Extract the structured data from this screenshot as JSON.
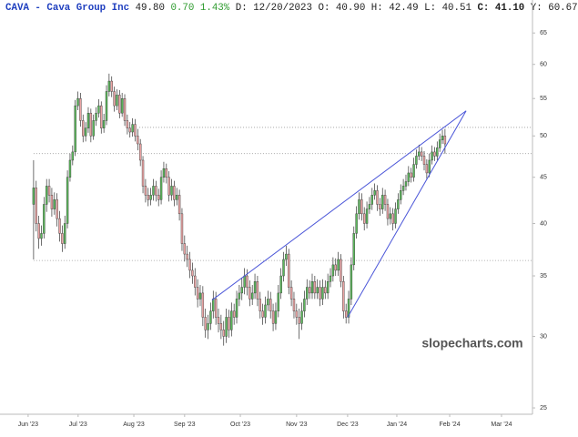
{
  "chart_data": {
    "type": "candlestick",
    "title": "CAVA - Cava Group Inc",
    "quote": [
      "49.80",
      "0.70",
      "1.43%",
      "D: 12/20/2023",
      "O: 40.90",
      "H: 42.49",
      "L: 40.51",
      "C: 41.10",
      "Y: 60.67"
    ],
    "watermark": "slopecharts.com",
    "log_scale": true,
    "up_color": "#5cb85c",
    "down_color": "#eba5a5",
    "wick_color": "#333333",
    "line_color": "#4a55d8",
    "ylim": [
      24.6,
      70.7
    ],
    "yticks": [
      25,
      30,
      35,
      40,
      45,
      50,
      55,
      60,
      65
    ],
    "xlim": [
      -12.9,
      191.6
    ],
    "xticks": [
      {
        "value": -2.1,
        "label": "Jun '23"
      },
      {
        "value": 17.1,
        "label": "Jul '23"
      },
      {
        "value": 38.5,
        "label": "Aug '23"
      },
      {
        "value": 58,
        "label": "Sep '23"
      },
      {
        "value": 79.4,
        "label": "Oct '23"
      },
      {
        "value": 101,
        "label": "Nov '23"
      },
      {
        "value": 120.6,
        "label": "Dec '23"
      },
      {
        "value": 139.5,
        "label": "Jan '24"
      },
      {
        "value": 159.8,
        "label": "Feb '24"
      },
      {
        "value": 179.7,
        "label": "Mar '24"
      }
    ],
    "open": [
      42,
      43.8,
      40,
      38.5,
      39,
      42,
      44,
      43,
      41.5,
      42.5,
      40.5,
      39,
      38,
      40,
      45,
      47,
      48,
      54,
      55,
      52,
      50,
      51,
      53,
      50,
      52,
      53,
      54,
      51,
      52,
      56,
      57.5,
      56,
      54,
      55.5,
      53,
      55,
      52,
      51,
      50.5,
      51.5,
      50,
      49,
      47,
      44,
      43,
      42.5,
      43,
      44,
      43,
      42.5,
      45,
      46,
      45,
      43,
      44,
      42.5,
      43,
      41,
      38,
      37,
      36.5,
      35.5,
      35,
      34,
      33,
      33.5,
      31.5,
      30.5,
      31,
      32,
      33,
      31.5,
      31,
      30.5,
      30,
      31.5,
      30.5,
      32,
      31.5,
      33,
      33.5,
      34,
      35,
      34,
      33,
      33.5,
      34.5,
      33,
      32,
      31.5,
      32.5,
      33,
      32,
      31,
      32,
      33.5,
      35,
      36.5,
      37,
      34,
      33,
      32,
      31.5,
      31,
      32,
      33,
      34,
      33.5,
      34.5,
      33.5,
      34,
      33,
      34,
      33.5,
      34.5,
      35,
      36,
      35.5,
      36.5,
      34.5,
      32,
      31.5,
      33,
      36,
      39,
      41,
      42.5,
      41,
      40,
      41.5,
      42,
      43,
      43.5,
      42,
      41.5,
      43,
      42,
      40.5,
      41,
      40,
      41.5,
      42.5,
      43.5,
      44,
      44.5,
      45.5,
      45,
      46.5,
      47.5,
      48,
      47.5,
      46.5,
      45.5,
      47,
      48,
      47.5,
      48.5,
      49.5,
      50
    ],
    "high": [
      47,
      44.6,
      40.8,
      39.8,
      42.8,
      44.8,
      44.8,
      43.8,
      43.3,
      43.2,
      41.3,
      39.8,
      40.8,
      45.8,
      47.8,
      48.8,
      54.8,
      56,
      55.8,
      52.8,
      51.8,
      53.8,
      53.6,
      52.8,
      53.8,
      54.9,
      54.6,
      52.9,
      56.9,
      58.6,
      58.2,
      56.7,
      56.3,
      56.2,
      55.8,
      55.6,
      52.8,
      51.8,
      52.3,
      52.2,
      50.9,
      49.6,
      47.5,
      44.8,
      43.8,
      43.8,
      44.8,
      44.6,
      43.7,
      45.8,
      46.8,
      46.6,
      45.7,
      44.8,
      44.6,
      43.8,
      43.6,
      41.6,
      38.8,
      37.8,
      37.2,
      36.2,
      35.7,
      34.7,
      34.2,
      34.1,
      32.2,
      31.7,
      32.7,
      33.7,
      33.6,
      32.2,
      31.7,
      31.2,
      32.2,
      32.1,
      32.7,
      32.6,
      33.7,
      34.2,
      34.8,
      35.7,
      35.6,
      34.6,
      34.2,
      35.2,
      35,
      33.6,
      32.6,
      33.2,
      33.7,
      33.6,
      32.6,
      32.7,
      34.2,
      35.7,
      37.2,
      37.8,
      37.5,
      34.6,
      33.6,
      32.6,
      32.2,
      32.7,
      33.7,
      34.7,
      34.6,
      35.2,
      35,
      34.7,
      34.6,
      34.7,
      34.6,
      35.2,
      35.7,
      36.7,
      36.6,
      37.2,
      37,
      35,
      32.6,
      33.7,
      36.7,
      39.7,
      41.8,
      43.3,
      43.2,
      41.7,
      42.3,
      42.8,
      43.8,
      44.3,
      44.1,
      42.7,
      43.8,
      43.6,
      42.6,
      41.7,
      41.6,
      42.2,
      43.2,
      44.2,
      44.8,
      45.3,
      46.3,
      46.1,
      47.3,
      48.3,
      48.9,
      48.6,
      48.1,
      47.1,
      47.8,
      48.8,
      48.6,
      49.3,
      50.3,
      50.8,
      50.9
    ],
    "low": [
      36.5,
      39.2,
      37.5,
      37.8,
      38.5,
      41.2,
      42.2,
      40.7,
      40.9,
      39.7,
      38.2,
      37.2,
      37.5,
      39.5,
      44.5,
      46.4,
      47.5,
      53.4,
      51.2,
      49.2,
      49.3,
      50.4,
      49.2,
      49.5,
      51.3,
      52.4,
      50.3,
      50.4,
      51.4,
      55.3,
      55.2,
      53.2,
      53.4,
      52.3,
      52.5,
      51.3,
      50.2,
      49.8,
      49.9,
      49.3,
      48.2,
      46.3,
      43.2,
      42.2,
      41.8,
      41.9,
      42.4,
      42.3,
      41.8,
      42,
      44.4,
      44.3,
      42.3,
      42.4,
      41.8,
      41.9,
      40.3,
      37.3,
      36.3,
      35.8,
      34.8,
      34.3,
      33.3,
      32.3,
      32.4,
      30.8,
      29.9,
      29.8,
      30.5,
      31.4,
      30.9,
      30.3,
      29.8,
      29.3,
      29.5,
      29.9,
      30,
      30.9,
      31,
      32.4,
      32.9,
      33.4,
      33.3,
      32.4,
      32.5,
      33,
      32.4,
      31.4,
      30.9,
      31,
      32,
      31.4,
      30.4,
      30.5,
      31.5,
      33,
      34.5,
      35.9,
      33.4,
      32.4,
      31.4,
      30.9,
      29.8,
      30.5,
      31.5,
      32.5,
      33,
      33,
      33,
      33,
      32.4,
      32.5,
      33,
      33,
      34,
      34.5,
      35,
      35,
      34,
      31.4,
      31,
      31,
      32.5,
      35.5,
      38.5,
      40.4,
      40.3,
      39.3,
      39.5,
      41,
      41.4,
      42.5,
      41.3,
      40.8,
      41,
      41.3,
      39.8,
      39.9,
      39.3,
      39.5,
      41,
      42,
      43,
      43.5,
      44,
      44.4,
      44.5,
      46,
      47,
      46.9,
      45.8,
      44.8,
      45,
      46.5,
      46.9,
      47,
      48,
      49,
      47.8
    ],
    "close": [
      43.8,
      40,
      38.5,
      39,
      42,
      44,
      43,
      41.5,
      42.5,
      40.5,
      39,
      38,
      40,
      45,
      47,
      48,
      54,
      55,
      52,
      50,
      51,
      53,
      50,
      52,
      53,
      54,
      51,
      52,
      56,
      57.5,
      56,
      54,
      55.5,
      53,
      55,
      52,
      51,
      50.5,
      51.5,
      50,
      49,
      47,
      44,
      43,
      42.5,
      43,
      44,
      43,
      42.5,
      45,
      46,
      45,
      43,
      44,
      42.5,
      43,
      41,
      38,
      37,
      36.5,
      35.5,
      35,
      34,
      33,
      33.5,
      31.5,
      30.5,
      31,
      32,
      33,
      31.5,
      31,
      30.5,
      30,
      31.5,
      30.5,
      32,
      31.5,
      33,
      33.5,
      34,
      35,
      34,
      33,
      33.5,
      34.5,
      33,
      32,
      31.5,
      32.5,
      33,
      32,
      31,
      32,
      33.5,
      35,
      36.5,
      37,
      34,
      33,
      32,
      31.5,
      31,
      32,
      33,
      34,
      33.5,
      34.5,
      33.5,
      34,
      33,
      34,
      33.5,
      34.5,
      35,
      36,
      35.5,
      36.5,
      34.5,
      32,
      31.5,
      33,
      36,
      39,
      41,
      42.5,
      41,
      40,
      41.5,
      42,
      43,
      43.5,
      42,
      41.5,
      43,
      42,
      40.5,
      41,
      40,
      41.5,
      42.5,
      43.5,
      44,
      44.5,
      45.5,
      45,
      46.5,
      47.5,
      48,
      47.5,
      46.5,
      45.5,
      47,
      48,
      47.5,
      48.5,
      49.5,
      50,
      49
    ],
    "hlines": [
      {
        "y": 51.1,
        "x_from": 40.6
      },
      {
        "y": 47.8,
        "x_from": 0
      },
      {
        "y": 36.4,
        "x_from": 0
      }
    ],
    "trendlines": [
      {
        "x": [
          68.5,
          166.1
        ],
        "y": [
          32.9,
          53.3
        ]
      },
      {
        "x": [
          120.6,
          166.1
        ],
        "y": [
          31.5,
          53.3
        ]
      }
    ]
  }
}
